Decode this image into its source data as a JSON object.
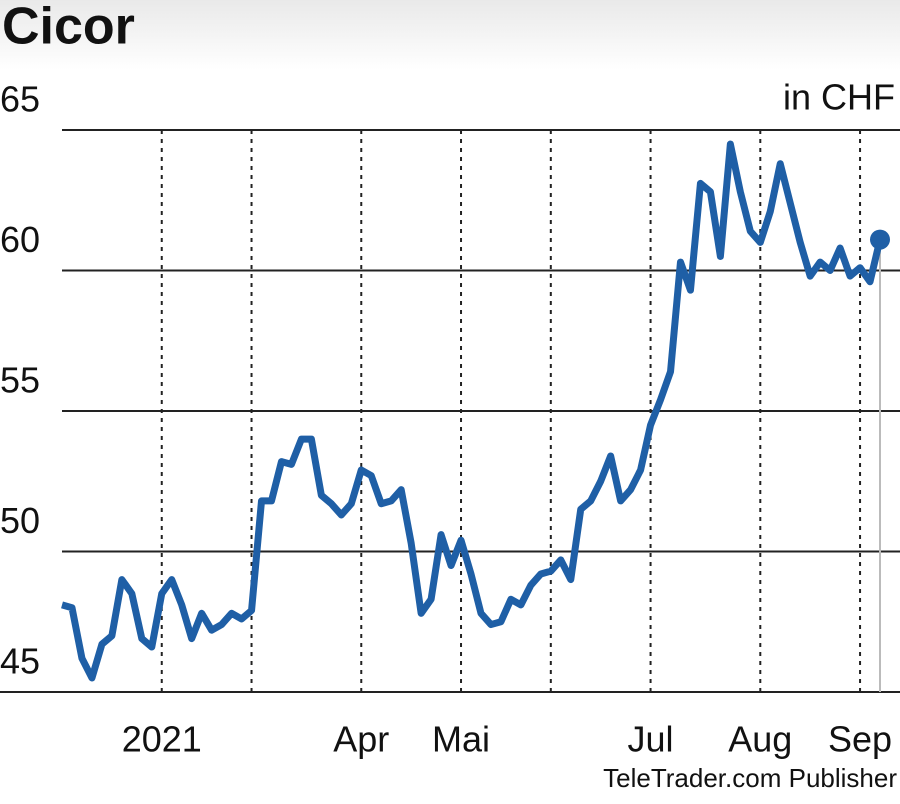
{
  "chart_data": {
    "type": "line",
    "title": "Cicor",
    "unit_label": "in CHF",
    "source": "TeleTrader.com Publisher",
    "categories": [
      null,
      null,
      null,
      null,
      null,
      null,
      null,
      null,
      null,
      null,
      "2021",
      null,
      null,
      null,
      null,
      null,
      null,
      null,
      null,
      null,
      null,
      null,
      null,
      null,
      null,
      null,
      null,
      null,
      null,
      null,
      "Apr",
      null,
      null,
      null,
      null,
      null,
      null,
      null,
      null,
      null,
      "Mai",
      null,
      null,
      null,
      null,
      null,
      null,
      null,
      null,
      null,
      null,
      null,
      null,
      null,
      null,
      null,
      null,
      null,
      null,
      "Jul",
      null,
      null,
      null,
      null,
      null,
      null,
      null,
      null,
      null,
      null,
      "Aug",
      null,
      null,
      null,
      null,
      null,
      null,
      null,
      null,
      null,
      "Sep",
      null,
      null
    ],
    "series": [
      {
        "name": "Cicor",
        "color": "#1f5fa6",
        "values": [
          48.1,
          48.0,
          46.2,
          45.5,
          46.7,
          47.0,
          49.0,
          48.5,
          46.9,
          46.6,
          48.5,
          49.0,
          48.1,
          46.9,
          47.8,
          47.2,
          47.4,
          47.8,
          47.6,
          47.9,
          51.8,
          51.8,
          53.2,
          53.1,
          54.0,
          54.0,
          52.0,
          51.7,
          51.3,
          51.7,
          52.9,
          52.7,
          51.7,
          51.8,
          52.2,
          50.3,
          47.8,
          48.3,
          50.6,
          49.5,
          50.4,
          49.2,
          47.8,
          47.4,
          47.5,
          48.3,
          48.1,
          48.8,
          49.2,
          49.3,
          49.7,
          49.0,
          51.5,
          51.8,
          52.5,
          53.4,
          51.8,
          52.2,
          52.9,
          54.5,
          55.4,
          56.4,
          60.3,
          59.3,
          63.1,
          62.8,
          60.5,
          64.5,
          62.8,
          61.4,
          61.0,
          62.1,
          63.8,
          62.4,
          61.0,
          59.8,
          60.3,
          60.0,
          60.8,
          59.8,
          60.1,
          59.6,
          61.1
        ]
      }
    ],
    "xticks": [
      10,
      19,
      30,
      40,
      49,
      59,
      70,
      80
    ],
    "ylim": [
      45,
      65
    ],
    "yticks": [
      45,
      50,
      55,
      60,
      65
    ],
    "grid": true
  }
}
